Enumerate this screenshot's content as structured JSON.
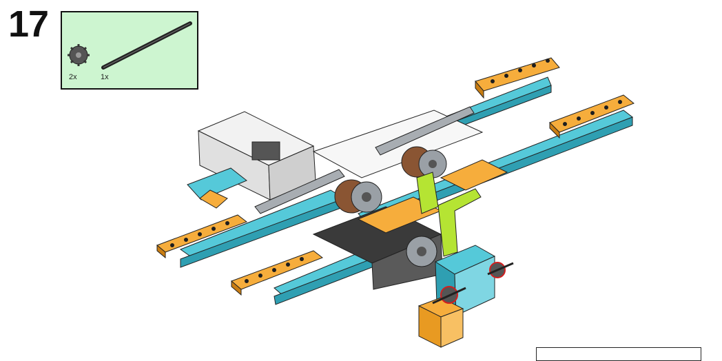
{
  "step": {
    "number": "17"
  },
  "parts": [
    {
      "icon": "gear-icon",
      "quantity": "2x"
    },
    {
      "icon": "axle-icon",
      "quantity": "1x"
    }
  ],
  "colors": {
    "parts_box_bg": "#cdf5d0",
    "azure": "#55c9d9",
    "orange": "#f6ad3c",
    "lime": "#b5e433",
    "gray": "#a8adb2",
    "hub_white": "#f2f2f2"
  }
}
